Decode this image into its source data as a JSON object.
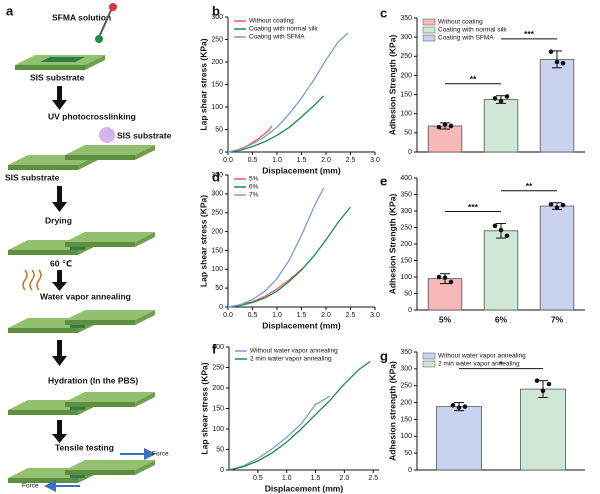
{
  "diagram": {
    "label": "a",
    "texts": [
      "SFMA solution",
      "SIS substrate",
      "UV photocrosslinking",
      "SIS substrate",
      "SIS substrate",
      "Drying",
      "60 ℃",
      "Water vapor annealing",
      "Hydration (In  the PBS)",
      "Tensile testing",
      "Force",
      "Force"
    ]
  },
  "chart_data": [
    {
      "type": "line",
      "label": "b",
      "xlabel": "Displacement (mm)",
      "ylabel": "Lap shear stress (KPa)",
      "xlim": [
        0,
        3
      ],
      "xticks": [
        {
          "value": 0,
          "label": "0.0"
        },
        0.5,
        {
          "value": 1,
          "label": "1.0"
        },
        1.5,
        {
          "value": 2,
          "label": "2.0"
        },
        2.5,
        {
          "value": 3,
          "label": "3.0"
        }
      ],
      "ylim": [
        0,
        300
      ],
      "yticks": [
        0,
        50,
        100,
        150,
        200,
        250,
        300
      ],
      "series": [
        {
          "name": "Without coating",
          "color": "#f06060",
          "x": [
            0,
            0.2,
            0.4,
            0.6,
            0.8,
            0.9
          ],
          "values": [
            0,
            5,
            14,
            28,
            45,
            58
          ]
        },
        {
          "name": "Coating with normal silk",
          "color": "#1f8a4c",
          "x": [
            0,
            0.25,
            0.5,
            0.75,
            1.0,
            1.25,
            1.5,
            1.75,
            1.95
          ],
          "values": [
            0,
            4,
            12,
            23,
            37,
            55,
            78,
            103,
            125
          ]
        },
        {
          "name": "Coating with SFMA",
          "color": "#7b9bd8",
          "x": [
            0,
            0.25,
            0.5,
            0.75,
            1.0,
            1.25,
            1.5,
            1.75,
            2.0,
            2.25,
            2.45
          ],
          "values": [
            0,
            6,
            18,
            34,
            55,
            85,
            120,
            160,
            205,
            245,
            265
          ]
        }
      ]
    },
    {
      "type": "bar",
      "label": "c",
      "ylabel": "Adhesion Strength (KPa)",
      "ylim": [
        0,
        350
      ],
      "yticks": [
        0,
        50,
        100,
        150,
        200,
        250,
        300,
        350
      ],
      "legend": [
        "Without coating",
        "Coating with normal silk",
        "Coating with SFMA"
      ],
      "colors": [
        "#f7b8b8",
        "#cfe8d5",
        "#c9d3ef"
      ],
      "values": [
        68,
        137,
        242
      ],
      "errors": [
        8,
        10,
        22
      ],
      "points": [
        [
          65,
          72,
          68
        ],
        [
          140,
          133,
          145
        ],
        [
          262,
          235,
          232
        ]
      ],
      "annotations": [
        "**",
        "***"
      ]
    },
    {
      "type": "line",
      "label": "d",
      "xlabel": "Displacement (mm)",
      "ylabel": "Lap shear stress (KPa)",
      "xlim": [
        0,
        3
      ],
      "xticks": [
        {
          "value": 0,
          "label": "0.0"
        },
        0.5,
        {
          "value": 1,
          "label": "1.0"
        },
        1.5,
        {
          "value": 2,
          "label": "2.0"
        },
        2.5,
        {
          "value": 3,
          "label": "3.0"
        }
      ],
      "ylim": [
        0,
        350
      ],
      "yticks": [
        0,
        50,
        100,
        150,
        200,
        250,
        300,
        350
      ],
      "series": [
        {
          "name": "5%",
          "color": "#f06060",
          "x": [
            0,
            0.25,
            0.5,
            0.75,
            1.0,
            1.25,
            1.55
          ],
          "values": [
            0,
            5,
            14,
            28,
            48,
            72,
            105
          ]
        },
        {
          "name": "6%",
          "color": "#1f8a4c",
          "x": [
            0,
            0.25,
            0.5,
            0.75,
            1.0,
            1.25,
            1.5,
            1.75,
            2.0,
            2.25,
            2.5
          ],
          "values": [
            0,
            4,
            12,
            24,
            42,
            68,
            98,
            135,
            178,
            225,
            265
          ]
        },
        {
          "name": "7%",
          "color": "#7b9bd8",
          "x": [
            0,
            0.25,
            0.5,
            0.75,
            1.0,
            1.25,
            1.5,
            1.75,
            1.95
          ],
          "values": [
            0,
            6,
            20,
            42,
            75,
            125,
            190,
            265,
            315
          ]
        }
      ]
    },
    {
      "type": "bar",
      "label": "e",
      "ylabel": "Adhesion Strength (KPa)",
      "ylim": [
        0,
        400
      ],
      "yticks": [
        0,
        50,
        100,
        150,
        200,
        250,
        300,
        350,
        400
      ],
      "categories": [
        "5%",
        "6%",
        "7%"
      ],
      "colors": [
        "#f7b8b8",
        "#cfe8d5",
        "#c9d3ef"
      ],
      "values": [
        95,
        240,
        315
      ],
      "errors": [
        15,
        22,
        10
      ],
      "points": [
        [
          100,
          98,
          85
        ],
        [
          255,
          242,
          225
        ],
        [
          320,
          310,
          318
        ]
      ],
      "annotations": [
        "***",
        "**"
      ]
    },
    {
      "type": "line",
      "label": "f",
      "xlabel": "Displacement (mm)",
      "ylabel": "Lap shear stress (KPa)",
      "xlim": [
        0,
        2.6
      ],
      "xticks": [
        0.5,
        {
          "value": 1,
          "label": "1.0"
        },
        1.5,
        {
          "value": 2,
          "label": "2.0"
        },
        2.5
      ],
      "ylim": [
        0,
        300
      ],
      "yticks": [
        0,
        50,
        100,
        150,
        200,
        250,
        300
      ],
      "series": [
        {
          "name": "Without water vapor annealing",
          "color": "#7b9bd8",
          "x": [
            0,
            0.25,
            0.5,
            0.75,
            1.0,
            1.25,
            1.5,
            1.75
          ],
          "values": [
            0,
            10,
            28,
            52,
            80,
            112,
            160,
            180
          ]
        },
        {
          "name": "2 min water vapor annealing",
          "color": "#1f8a4c",
          "x": [
            0,
            0.25,
            0.5,
            0.75,
            1.0,
            1.25,
            1.5,
            1.75,
            2.0,
            2.25,
            2.45
          ],
          "values": [
            0,
            8,
            22,
            42,
            68,
            100,
            135,
            170,
            210,
            245,
            265
          ]
        }
      ]
    },
    {
      "type": "bar",
      "label": "g",
      "ylabel": "Adhesion strength (KPa)",
      "ylim": [
        0,
        350
      ],
      "yticks": [
        0,
        50,
        100,
        150,
        200,
        250,
        300,
        350
      ],
      "legend": [
        "Without water vapor annealing",
        "2 min water vapor annealing"
      ],
      "colors": [
        "#c9d3ef",
        "#cfe8d5"
      ],
      "values": [
        188,
        240
      ],
      "errors": [
        12,
        25
      ],
      "points": [
        [
          192,
          185,
          188
        ],
        [
          265,
          235,
          255
        ]
      ],
      "annotations": [
        "*"
      ]
    }
  ]
}
